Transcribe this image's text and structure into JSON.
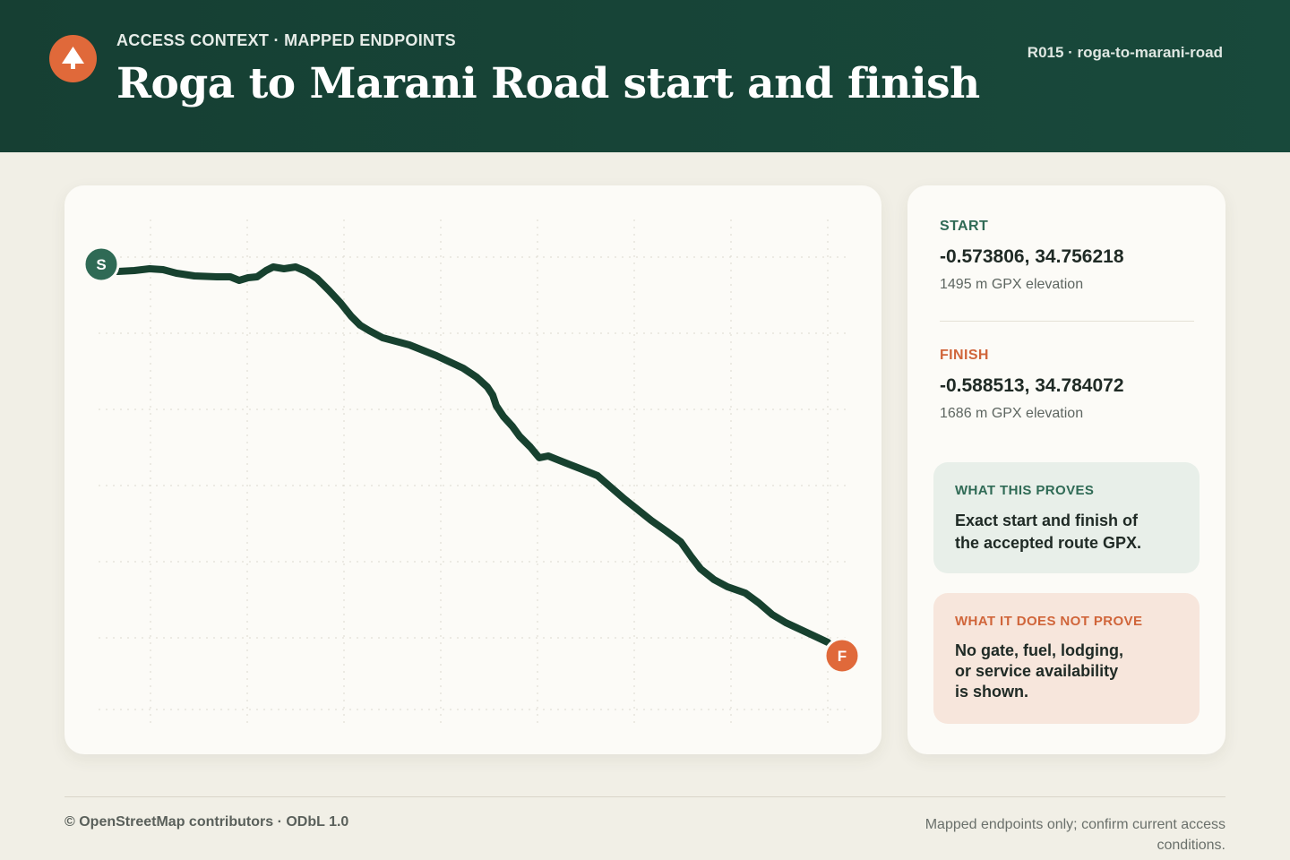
{
  "header": {
    "eyebrow": "ACCESS CONTEXT · MAPPED ENDPOINTS",
    "title": "Roga to Marani Road start and finish",
    "route_id": "R015 · roga-to-marani-road",
    "logo_icon": "tree-icon"
  },
  "map": {
    "start_marker": "S",
    "finish_marker": "F",
    "route_color": "#17412f",
    "start_color": "#2f6a55",
    "finish_color": "#e0693a"
  },
  "start": {
    "label": "START",
    "coords": "-0.573806, 34.756218",
    "elevation": "1495 m GPX elevation"
  },
  "finish": {
    "label": "FINISH",
    "coords": "-0.588513, 34.784072",
    "elevation": "1686 m GPX elevation"
  },
  "proves": {
    "heading": "WHAT THIS PROVES",
    "text": "Exact start and finish of the accepted route GPX."
  },
  "not_prove": {
    "heading": "WHAT IT DOES NOT PROVE",
    "text": "No gate, fuel, lodging, or service availability is shown."
  },
  "footer": {
    "attribution": "© OpenStreetMap contributors · ODbL 1.0",
    "note": "Mapped endpoints only; confirm current access conditions."
  }
}
